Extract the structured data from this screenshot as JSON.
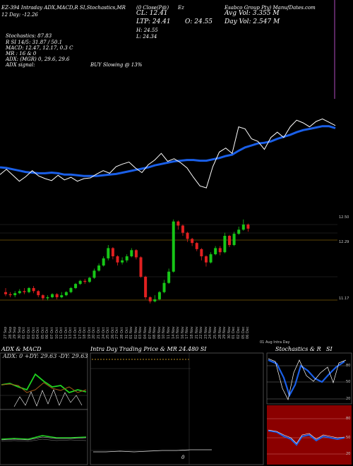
{
  "header": {
    "l1": "EZ-394 Intraday ADX,MACD,R SI,Stochastics,MR",
    "l1b": "(0 Close(P@)",
    "l1c": "Ez",
    "l2": "12 Day: -12.26",
    "cl": "CL: 12.41",
    "ltp": "LTP: 24.41",
    "o": "O: 24.55",
    "h": "H: 24.55",
    "lo": "L: 24.34",
    "avg_vol": "Avg Vol: 3.355 M",
    "day_vol": "Day Vol: 2.547 M",
    "company": "Esabco Group Pty) ManufDates.com",
    "stoch": "Stochastics: 87.83",
    "rsi": "R    SI 14/5: 31.87 / 50.1",
    "macd": "MACD: 12.47, 12.17, 0.3 C",
    "mr": "MR    : 16 & 0",
    "adx": "ADX:             (MGR) 0, 29.6, 29.6",
    "adx_signal": "ADX signal:",
    "signal": "BUY Slowing @ 13%"
  },
  "price_labels": [
    "12.50",
    "12.29",
    "11.17"
  ],
  "date_labels": [
    "27 Sep",
    "28 Sep",
    "29 Sep",
    "30 Sep",
    "01 Oct",
    "02 Oct",
    "03 Oct",
    "04 Oct",
    "05 Oct",
    "06 Oct",
    "07 Oct",
    "10 Oct",
    "11 Oct",
    "12 Oct",
    "13 Oct",
    "14 Oct",
    "17 Oct",
    "18 Oct",
    "19 Oct",
    "20 Oct",
    "21 Oct",
    "24 Oct",
    "25 Oct",
    "26 Oct",
    "27 Oct",
    "28 Oct",
    "31 Oct",
    "01 Nov",
    "02 Nov",
    "03 Nov",
    "04 Nov",
    "07 Nov",
    "08 Nov",
    "09 Nov",
    "10 Nov",
    "11 Nov",
    "14 Nov",
    "15 Nov",
    "16 Nov",
    "17 Nov",
    "18 Nov",
    "21 Nov",
    "22 Nov",
    "23 Nov",
    "24 Nov",
    "25 Nov",
    "28 Nov",
    "29 Nov",
    "30 Nov",
    "01 Dec",
    "02 Dec",
    "05 Dec",
    "06 Dec"
  ],
  "footer_note": "01 Aug Intra Day",
  "panels": {
    "adx_title": "ADX  & MACD",
    "adx_values": "ADX: 0  +DY: 29.63  -DY: 29.63",
    "intra_title": "Intra Day Trading Price  & MR  24.480   SI",
    "intra_zero": "0",
    "stoch_title": "Stochastics & R",
    "stoch_si": "SI",
    "stoch_ticks": [
      "80",
      "50",
      "20"
    ],
    "rsi_ticks": [
      "80",
      "50",
      "20"
    ]
  },
  "chart_data": {
    "type": "line",
    "title": "",
    "series": [
      {
        "name": "Close",
        "values": [
          15.2,
          16.0,
          15.1,
          14.2,
          14.9,
          15.8,
          15.0,
          14.6,
          14.3,
          15.1,
          14.4,
          14.8,
          14.2,
          14.6,
          14.7,
          15.3,
          15.8,
          15.4,
          16.4,
          16.8,
          17.1,
          16.2,
          15.5,
          16.7,
          17.4,
          18.4,
          17.2,
          17.6,
          17.0,
          16.2,
          14.8,
          13.5,
          13.2,
          16.4,
          18.6,
          19.2,
          18.4,
          22.4,
          22.1,
          20.6,
          20.2,
          19.0,
          20.8,
          21.6,
          20.8,
          22.4,
          23.4,
          23.0,
          22.4,
          23.2,
          23.6,
          23.1,
          22.6
        ]
      },
      {
        "name": "Average",
        "values": [
          16.3,
          16.2,
          16.0,
          15.8,
          15.6,
          15.5,
          15.4,
          15.4,
          15.5,
          15.4,
          15.2,
          15.2,
          15.1,
          15.0,
          15.0,
          15.0,
          15.1,
          15.2,
          15.3,
          15.5,
          15.7,
          15.9,
          16.1,
          16.3,
          16.6,
          16.8,
          17.0,
          17.2,
          17.3,
          17.4,
          17.4,
          17.3,
          17.3,
          17.5,
          17.7,
          18.0,
          18.2,
          18.8,
          19.3,
          19.6,
          19.9,
          20.0,
          20.2,
          20.6,
          20.9,
          21.2,
          21.6,
          21.9,
          22.1,
          22.3,
          22.5,
          22.5,
          22.2
        ]
      }
    ],
    "candles": [
      [
        24.5,
        24.3,
        24.9,
        24.1
      ],
      [
        24.3,
        24.2,
        24.5,
        24.0
      ],
      [
        24.2,
        24.4,
        24.6,
        24.0
      ],
      [
        24.4,
        24.6,
        24.8,
        24.3
      ],
      [
        24.6,
        24.5,
        24.9,
        24.3
      ],
      [
        24.5,
        24.9,
        25.0,
        24.4
      ],
      [
        24.9,
        24.6,
        25.1,
        24.4
      ],
      [
        24.6,
        24.2,
        24.7,
        24.0
      ],
      [
        24.2,
        23.9,
        24.3,
        23.7
      ],
      [
        23.9,
        24.0,
        24.2,
        23.7
      ],
      [
        24.0,
        24.3,
        24.4,
        23.9
      ],
      [
        24.3,
        24.0,
        24.4,
        23.8
      ],
      [
        24.0,
        24.2,
        24.5,
        23.9
      ],
      [
        24.2,
        24.5,
        24.6,
        24.1
      ],
      [
        24.5,
        24.9,
        25.0,
        24.4
      ],
      [
        24.9,
        25.3,
        25.4,
        24.8
      ],
      [
        25.3,
        25.6,
        25.7,
        25.2
      ],
      [
        25.6,
        25.5,
        25.8,
        25.3
      ],
      [
        25.5,
        25.9,
        26.0,
        25.4
      ],
      [
        25.9,
        26.6,
        26.8,
        25.8
      ],
      [
        26.6,
        27.1,
        27.3,
        26.5
      ],
      [
        27.1,
        27.8,
        28.0,
        27.0
      ],
      [
        27.8,
        28.8,
        29.1,
        27.6
      ],
      [
        28.8,
        28.0,
        28.9,
        27.7
      ],
      [
        28.0,
        27.4,
        28.1,
        27.1
      ],
      [
        27.4,
        27.6,
        27.9,
        27.2
      ],
      [
        27.6,
        28.0,
        28.2,
        27.4
      ],
      [
        28.0,
        28.6,
        28.8,
        27.9
      ],
      [
        28.6,
        27.9,
        28.7,
        27.7
      ],
      [
        27.9,
        26.0,
        28.0,
        25.9
      ],
      [
        26.0,
        24.0,
        26.1,
        23.8
      ],
      [
        24.0,
        23.6,
        24.1,
        23.4
      ],
      [
        23.6,
        23.8,
        24.2,
        23.5
      ],
      [
        23.8,
        24.5,
        24.6,
        23.7
      ],
      [
        24.5,
        25.4,
        25.7,
        24.4
      ],
      [
        25.4,
        26.5,
        26.8,
        25.3
      ],
      [
        26.5,
        31.4,
        31.6,
        26.4
      ],
      [
        31.4,
        31.0,
        31.5,
        30.6
      ],
      [
        31.0,
        30.3,
        31.1,
        30.0
      ],
      [
        30.3,
        29.7,
        30.4,
        29.4
      ],
      [
        29.7,
        29.3,
        29.8,
        29.0
      ],
      [
        29.3,
        28.7,
        29.4,
        28.5
      ],
      [
        28.7,
        28.0,
        28.8,
        27.6
      ],
      [
        28.0,
        27.4,
        28.1,
        27.0
      ],
      [
        27.4,
        28.2,
        28.4,
        27.3
      ],
      [
        28.2,
        28.8,
        29.0,
        28.1
      ],
      [
        28.8,
        28.4,
        29.0,
        28.1
      ],
      [
        28.4,
        30.0,
        30.3,
        28.3
      ],
      [
        30.0,
        29.1,
        30.1,
        28.9
      ],
      [
        29.1,
        30.2,
        30.4,
        29.0
      ],
      [
        30.2,
        30.6,
        30.9,
        30.1
      ],
      [
        30.6,
        31.1,
        31.6,
        30.5
      ],
      [
        31.1,
        30.7,
        31.2,
        30.4
      ]
    ],
    "adx": {
      "plus_di": 29.63,
      "minus_di": 29.63,
      "adx": 0
    },
    "stochastics": 87.83,
    "rsi": 31.87
  }
}
